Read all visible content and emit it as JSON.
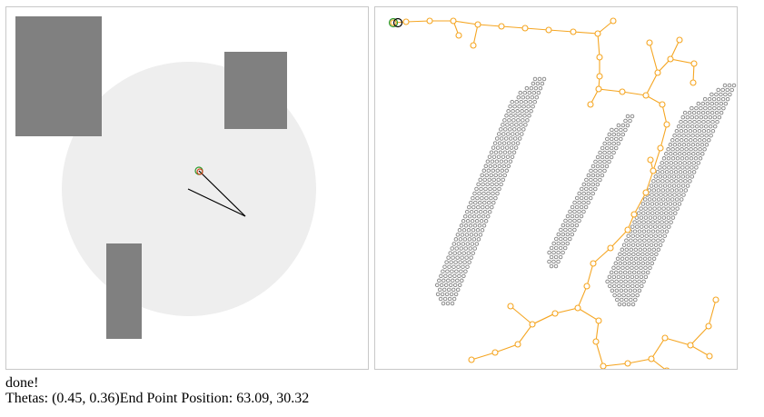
{
  "status": "done!",
  "readout": {
    "thetas_label": "Thetas: ",
    "thetas_value": "(0.45, 0.36)",
    "endpoint_label": "End Point Position: ",
    "endpoint_value": "63.09, 30.32"
  },
  "colors": {
    "workspace": "#eeeeee",
    "obstacle": "#808080",
    "tree": "#f5a623",
    "start": "#2e9b2e",
    "goal": "#d9431e",
    "arm": "#000000"
  }
}
